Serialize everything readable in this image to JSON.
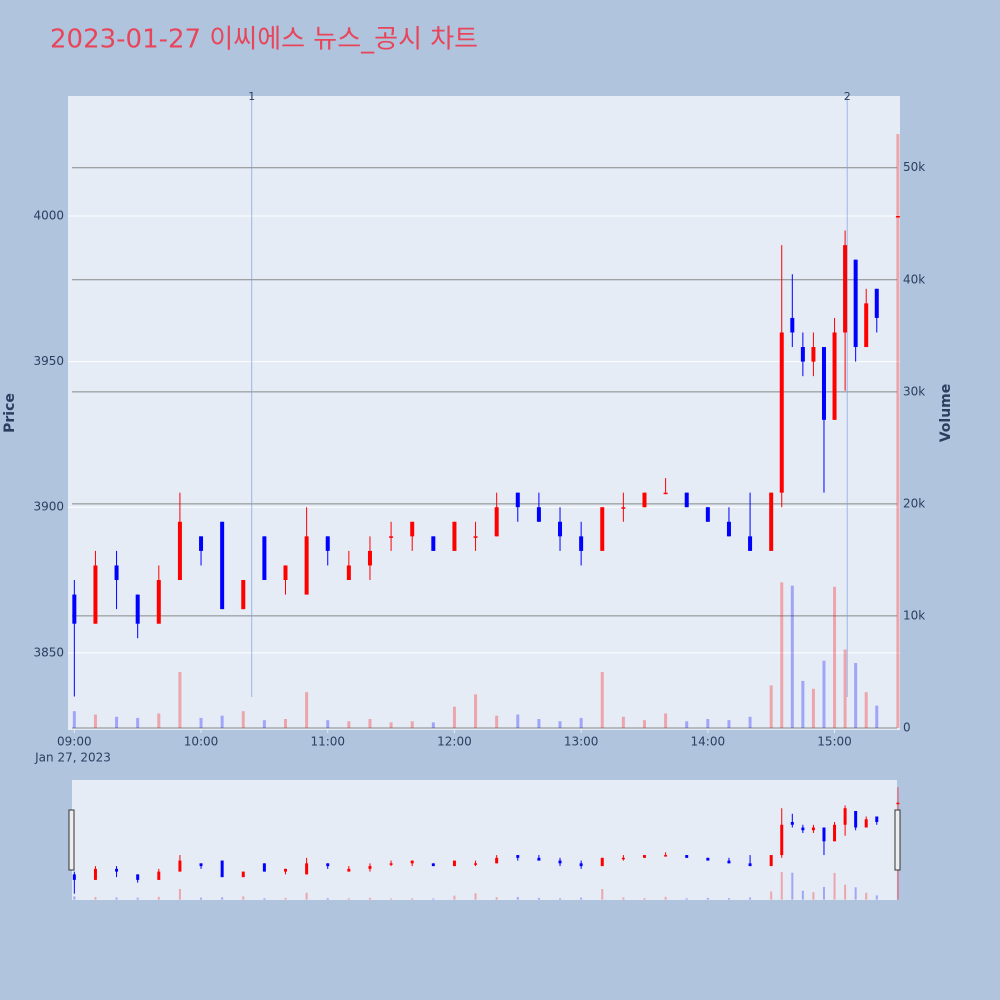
{
  "chart_data": {
    "type": "candlestick",
    "title": "2023-01-27 이씨에스 뉴스_공시 차트",
    "y_label": "Price",
    "y2_label": "Volume",
    "date_label": "Jan 27, 2023",
    "increasing_color": "#ff0000",
    "decreasing_color": "#0000ff",
    "x": [
      "2023-01-27 09:00",
      "2023-01-27 09:10",
      "2023-01-27 09:20",
      "2023-01-27 09:30",
      "2023-01-27 09:40",
      "2023-01-27 09:50",
      "2023-01-27 10:00",
      "2023-01-27 10:10",
      "2023-01-27 10:20",
      "2023-01-27 10:30",
      "2023-01-27 10:40",
      "2023-01-27 10:50",
      "2023-01-27 11:00",
      "2023-01-27 11:10",
      "2023-01-27 11:20",
      "2023-01-27 11:30",
      "2023-01-27 11:40",
      "2023-01-27 11:50",
      "2023-01-27 12:00",
      "2023-01-27 12:10",
      "2023-01-27 12:20",
      "2023-01-27 12:30",
      "2023-01-27 12:40",
      "2023-01-27 12:50",
      "2023-01-27 13:00",
      "2023-01-27 13:10",
      "2023-01-27 13:20",
      "2023-01-27 13:30",
      "2023-01-27 13:40",
      "2023-01-27 13:50",
      "2023-01-27 14:00",
      "2023-01-27 14:10",
      "2023-01-27 14:20",
      "2023-01-27 14:30",
      "2023-01-27 14:35",
      "2023-01-27 14:40",
      "2023-01-27 14:45",
      "2023-01-27 14:50",
      "2023-01-27 14:55",
      "2023-01-27 15:00",
      "2023-01-27 15:05",
      "2023-01-27 15:10",
      "2023-01-27 15:15",
      "2023-01-27 15:20",
      "2023-01-27 15:30"
    ],
    "open": [
      3870,
      3860,
      3880,
      3870,
      3860,
      3875,
      3890,
      3895,
      3865,
      3890,
      3875,
      3870,
      3890,
      3875,
      3880,
      3890,
      3890,
      3890,
      3885,
      3890,
      3890,
      3905,
      3900,
      3895,
      3890,
      3885,
      3900,
      3900,
      3905,
      3905,
      3900,
      3895,
      3890,
      3885,
      3905,
      3965,
      3955,
      3950,
      3955,
      3930,
      3960,
      3985,
      3955,
      3975,
      4000
    ],
    "high": [
      3875,
      3885,
      3885,
      3870,
      3880,
      3905,
      3890,
      3895,
      3875,
      3890,
      3880,
      3900,
      3890,
      3885,
      3890,
      3895,
      3895,
      3890,
      3895,
      3895,
      3905,
      3905,
      3905,
      3900,
      3895,
      3900,
      3905,
      3905,
      3910,
      3905,
      3900,
      3900,
      3905,
      3905,
      3990,
      3980,
      3960,
      3960,
      3955,
      3965,
      3995,
      3985,
      3975,
      3975,
      4000
    ],
    "low": [
      3835,
      3860,
      3865,
      3855,
      3860,
      3875,
      3880,
      3865,
      3865,
      3875,
      3870,
      3870,
      3880,
      3875,
      3875,
      3885,
      3885,
      3885,
      3885,
      3885,
      3890,
      3895,
      3895,
      3885,
      3880,
      3885,
      3895,
      3900,
      3905,
      3900,
      3895,
      3890,
      3885,
      3885,
      3900,
      3955,
      3945,
      3945,
      3905,
      3930,
      3940,
      3950,
      3955,
      3960,
      4000
    ],
    "close": [
      3860,
      3880,
      3875,
      3860,
      3875,
      3895,
      3885,
      3865,
      3875,
      3875,
      3880,
      3890,
      3885,
      3880,
      3885,
      3890,
      3895,
      3885,
      3895,
      3890,
      3900,
      3900,
      3895,
      3890,
      3885,
      3900,
      3900,
      3905,
      3905,
      3900,
      3895,
      3890,
      3885,
      3905,
      3960,
      3960,
      3950,
      3955,
      3930,
      3960,
      3990,
      3955,
      3970,
      3965,
      4000
    ],
    "volume": [
      1500,
      1200,
      1000,
      900,
      1300,
      5000,
      900,
      1100,
      1500,
      700,
      800,
      3200,
      700,
      600,
      800,
      500,
      600,
      500,
      1900,
      3000,
      1100,
      1200,
      800,
      600,
      900,
      5000,
      1000,
      700,
      1300,
      600,
      800,
      700,
      1000,
      3800,
      13000,
      12700,
      4200,
      3500,
      6000,
      12600,
      7000,
      5800,
      3200,
      2000,
      53000
    ],
    "xlim": [
      "2023-01-27 08:57",
      "2023-01-27 15:31"
    ],
    "xticks": [
      {
        "value": "2023-01-27 09:00",
        "label": "09:00"
      },
      {
        "value": "2023-01-27 10:00",
        "label": "10:00"
      },
      {
        "value": "2023-01-27 11:00",
        "label": "11:00"
      },
      {
        "value": "2023-01-27 12:00",
        "label": "12:00"
      },
      {
        "value": "2023-01-27 13:00",
        "label": "13:00"
      },
      {
        "value": "2023-01-27 14:00",
        "label": "14:00"
      },
      {
        "value": "2023-01-27 15:00",
        "label": "15:00"
      }
    ],
    "ylim": [
      3823.5,
      4041.2
    ],
    "yticks": [
      3850,
      3900,
      3950,
      4000
    ],
    "y2lim": [
      -180,
      56400
    ],
    "y2ticks": [
      0,
      {
        "value": 10000,
        "label": "10k"
      },
      {
        "value": 20000,
        "label": "20k"
      },
      {
        "value": 30000,
        "label": "30k"
      },
      {
        "value": 40000,
        "label": "40k"
      },
      {
        "value": 50000,
        "label": "50k"
      }
    ],
    "events": [
      {
        "x": "2023-01-27 10:24",
        "label": "1"
      },
      {
        "x": "2023-01-27 15:06",
        "label": "2"
      }
    ],
    "grid": true,
    "rangeslider": true
  }
}
